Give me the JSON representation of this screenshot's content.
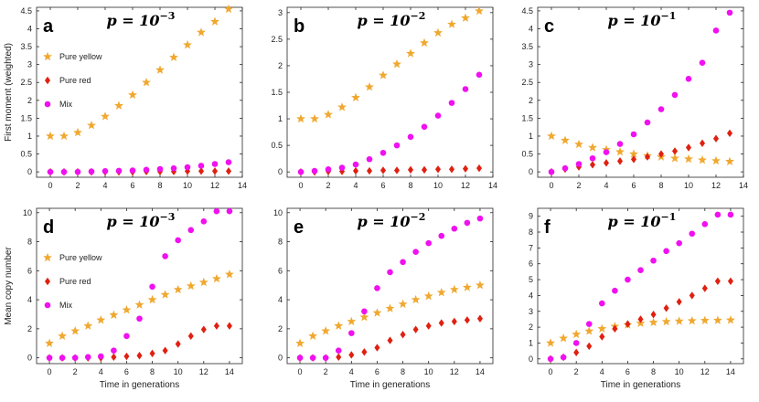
{
  "figure": {
    "colors": {
      "yellow": "#F0A830",
      "red": "#E02010",
      "mix": "#F010F0"
    },
    "legend": [
      "Pure yellow",
      "Pure red",
      "Mix"
    ],
    "xlabel": "Time in generations",
    "ylabel_top": "First moment (weighted)",
    "ylabel_bottom": "Mean copy number"
  },
  "chart_data": [
    {
      "type": "scatter",
      "panel": "a",
      "title": {
        "base": "p = 10",
        "exp": "−3"
      },
      "xlim": [
        -1,
        14
      ],
      "ylim": [
        -0.15,
        4.6
      ],
      "xticks": [
        0,
        2,
        4,
        6,
        8,
        10,
        12,
        14
      ],
      "yticks": [
        0,
        0.5,
        1,
        1.5,
        2,
        2.5,
        3,
        3.5,
        4,
        4.5
      ],
      "legend": true,
      "ylabel": "ylabel_top",
      "xlabel": false,
      "series": [
        {
          "name": "Pure yellow",
          "marker": "star",
          "x": [
            0,
            1,
            2,
            3,
            4,
            5,
            6,
            7,
            8,
            9,
            10,
            11,
            12,
            13
          ],
          "y": [
            1.0,
            1.0,
            1.1,
            1.3,
            1.55,
            1.85,
            2.15,
            2.5,
            2.85,
            3.2,
            3.55,
            3.9,
            4.2,
            4.55
          ]
        },
        {
          "name": "Pure red",
          "marker": "diamond",
          "x": [
            0,
            1,
            2,
            3,
            4,
            5,
            6,
            7,
            8,
            9,
            10,
            11,
            12,
            13
          ],
          "y": [
            0.0,
            0.0,
            0.0,
            0.0,
            0.0,
            0.0,
            0.0,
            0.01,
            0.01,
            0.01,
            0.02,
            0.02,
            0.02,
            0.02
          ]
        },
        {
          "name": "Mix",
          "marker": "circle",
          "x": [
            0,
            1,
            2,
            3,
            4,
            5,
            6,
            7,
            8,
            9,
            10,
            11,
            12,
            13
          ],
          "y": [
            0.0,
            0.0,
            0.0,
            0.01,
            0.02,
            0.03,
            0.04,
            0.06,
            0.08,
            0.1,
            0.13,
            0.17,
            0.22,
            0.27
          ]
        }
      ]
    },
    {
      "type": "scatter",
      "panel": "b",
      "title": {
        "base": "p = 10",
        "exp": "−2"
      },
      "xlim": [
        -1,
        14
      ],
      "ylim": [
        -0.1,
        3.1
      ],
      "xticks": [
        0,
        2,
        4,
        6,
        8,
        10,
        12,
        14
      ],
      "yticks": [
        0,
        0.5,
        1,
        1.5,
        2,
        2.5,
        3
      ],
      "legend": false,
      "ylabel": null,
      "xlabel": false,
      "series": [
        {
          "name": "Pure yellow",
          "marker": "star",
          "x": [
            0,
            1,
            2,
            3,
            4,
            5,
            6,
            7,
            8,
            9,
            10,
            11,
            12,
            13
          ],
          "y": [
            1.0,
            1.0,
            1.08,
            1.22,
            1.4,
            1.6,
            1.82,
            2.03,
            2.23,
            2.43,
            2.62,
            2.78,
            2.9,
            3.03
          ]
        },
        {
          "name": "Pure red",
          "marker": "diamond",
          "x": [
            0,
            1,
            2,
            3,
            4,
            5,
            6,
            7,
            8,
            9,
            10,
            11,
            12,
            13
          ],
          "y": [
            0.0,
            0.0,
            0.01,
            0.01,
            0.02,
            0.02,
            0.03,
            0.03,
            0.04,
            0.04,
            0.05,
            0.05,
            0.06,
            0.07
          ]
        },
        {
          "name": "Mix",
          "marker": "circle",
          "x": [
            0,
            1,
            2,
            3,
            4,
            5,
            6,
            7,
            8,
            9,
            10,
            11,
            12,
            13
          ],
          "y": [
            0.0,
            0.02,
            0.05,
            0.08,
            0.14,
            0.24,
            0.36,
            0.5,
            0.66,
            0.85,
            1.06,
            1.3,
            1.56,
            1.83
          ]
        }
      ]
    },
    {
      "type": "scatter",
      "panel": "c",
      "title": {
        "base": "p = 10",
        "exp": "−1"
      },
      "xlim": [
        -1,
        14
      ],
      "ylim": [
        -0.15,
        4.6
      ],
      "xticks": [
        0,
        2,
        4,
        6,
        8,
        10,
        12,
        14
      ],
      "yticks": [
        0,
        0.5,
        1,
        1.5,
        2,
        2.5,
        3,
        3.5,
        4,
        4.5
      ],
      "legend": false,
      "ylabel": null,
      "xlabel": false,
      "series": [
        {
          "name": "Pure yellow",
          "marker": "star",
          "x": [
            0,
            1,
            2,
            3,
            4,
            5,
            6,
            7,
            8,
            9,
            10,
            11,
            12,
            13
          ],
          "y": [
            1.0,
            0.88,
            0.77,
            0.68,
            0.62,
            0.56,
            0.5,
            0.45,
            0.42,
            0.38,
            0.36,
            0.33,
            0.31,
            0.29
          ]
        },
        {
          "name": "Pure red",
          "marker": "diamond",
          "x": [
            0,
            1,
            2,
            3,
            4,
            5,
            6,
            7,
            8,
            9,
            10,
            11,
            12,
            13
          ],
          "y": [
            0.0,
            0.08,
            0.14,
            0.2,
            0.25,
            0.3,
            0.35,
            0.42,
            0.5,
            0.58,
            0.68,
            0.8,
            0.93,
            1.08
          ]
        },
        {
          "name": "Mix",
          "marker": "circle",
          "x": [
            0,
            1,
            2,
            3,
            4,
            5,
            6,
            7,
            8,
            9,
            10,
            11,
            12,
            13
          ],
          "y": [
            0.0,
            0.1,
            0.22,
            0.38,
            0.55,
            0.78,
            1.05,
            1.38,
            1.75,
            2.15,
            2.6,
            3.05,
            3.95,
            4.45
          ]
        }
      ]
    },
    {
      "type": "scatter",
      "panel": "d",
      "title": {
        "base": "p = 10",
        "exp": "−3"
      },
      "xlim": [
        -1,
        15
      ],
      "ylim": [
        -0.4,
        10.3
      ],
      "xticks": [
        0,
        2,
        4,
        6,
        8,
        10,
        12,
        14
      ],
      "yticks": [
        0,
        2,
        4,
        6,
        8,
        10
      ],
      "legend": true,
      "ylabel": "ylabel_bottom",
      "xlabel": true,
      "series": [
        {
          "name": "Pure yellow",
          "marker": "star",
          "x": [
            0,
            1,
            2,
            3,
            4,
            5,
            6,
            7,
            8,
            9,
            10,
            11,
            12,
            13,
            14
          ],
          "y": [
            1.0,
            1.5,
            1.85,
            2.2,
            2.6,
            2.95,
            3.3,
            3.65,
            4.0,
            4.35,
            4.7,
            4.95,
            5.2,
            5.45,
            5.75
          ]
        },
        {
          "name": "Pure red",
          "marker": "diamond",
          "x": [
            0,
            1,
            2,
            3,
            4,
            5,
            6,
            7,
            8,
            9,
            10,
            11,
            12,
            13,
            14
          ],
          "y": [
            0.0,
            0.0,
            0.0,
            0.0,
            0.0,
            0.05,
            0.1,
            0.15,
            0.3,
            0.5,
            0.95,
            1.5,
            1.95,
            2.2,
            2.2
          ]
        },
        {
          "name": "Mix",
          "marker": "circle",
          "x": [
            0,
            1,
            2,
            3,
            4,
            5,
            6,
            7,
            8,
            9,
            10,
            11,
            12,
            13,
            14
          ],
          "y": [
            0.0,
            0.0,
            0.0,
            0.05,
            0.1,
            0.5,
            1.5,
            2.7,
            4.9,
            7.0,
            8.1,
            8.8,
            9.4,
            10.1,
            10.1
          ]
        }
      ]
    },
    {
      "type": "scatter",
      "panel": "e",
      "title": {
        "base": "p = 10",
        "exp": "−2"
      },
      "xlim": [
        -1,
        15
      ],
      "ylim": [
        -0.4,
        10.3
      ],
      "xticks": [
        0,
        2,
        4,
        6,
        8,
        10,
        12,
        14
      ],
      "yticks": [
        0,
        2,
        4,
        6,
        8,
        10
      ],
      "legend": false,
      "ylabel": null,
      "xlabel": true,
      "series": [
        {
          "name": "Pure yellow",
          "marker": "star",
          "x": [
            0,
            1,
            2,
            3,
            4,
            5,
            6,
            7,
            8,
            9,
            10,
            11,
            12,
            13,
            14
          ],
          "y": [
            1.0,
            1.5,
            1.85,
            2.2,
            2.5,
            2.8,
            3.1,
            3.4,
            3.7,
            4.0,
            4.25,
            4.5,
            4.7,
            4.85,
            5.0
          ]
        },
        {
          "name": "Pure red",
          "marker": "diamond",
          "x": [
            0,
            1,
            2,
            3,
            4,
            5,
            6,
            7,
            8,
            9,
            10,
            11,
            12,
            13,
            14
          ],
          "y": [
            0.0,
            0.0,
            0.0,
            0.05,
            0.2,
            0.4,
            0.7,
            1.2,
            1.6,
            1.95,
            2.2,
            2.4,
            2.5,
            2.6,
            2.7
          ]
        },
        {
          "name": "Mix",
          "marker": "circle",
          "x": [
            0,
            1,
            2,
            3,
            4,
            5,
            6,
            7,
            8,
            9,
            10,
            11,
            12,
            13,
            14
          ],
          "y": [
            0.0,
            0.0,
            0.0,
            0.5,
            1.7,
            3.2,
            4.8,
            5.9,
            6.6,
            7.3,
            7.9,
            8.4,
            8.9,
            9.3,
            9.6
          ]
        }
      ]
    },
    {
      "type": "scatter",
      "panel": "f",
      "title": {
        "base": "p = 10",
        "exp": "−1"
      },
      "xlim": [
        -1,
        15
      ],
      "ylim": [
        -0.3,
        9.5
      ],
      "xticks": [
        0,
        2,
        4,
        6,
        8,
        10,
        12,
        14
      ],
      "yticks": [
        0,
        1,
        2,
        3,
        4,
        5,
        6,
        7,
        8,
        9
      ],
      "legend": false,
      "ylabel": null,
      "xlabel": true,
      "series": [
        {
          "name": "Pure yellow",
          "marker": "star",
          "x": [
            0,
            1,
            2,
            3,
            4,
            5,
            6,
            7,
            8,
            9,
            10,
            11,
            12,
            13,
            14
          ],
          "y": [
            1.0,
            1.3,
            1.55,
            1.75,
            1.9,
            2.05,
            2.15,
            2.25,
            2.3,
            2.35,
            2.38,
            2.4,
            2.42,
            2.43,
            2.45
          ]
        },
        {
          "name": "Pure red",
          "marker": "diamond",
          "x": [
            0,
            1,
            2,
            3,
            4,
            5,
            6,
            7,
            8,
            9,
            10,
            11,
            12,
            13,
            14
          ],
          "y": [
            0.0,
            0.1,
            0.4,
            0.8,
            1.4,
            1.9,
            2.2,
            2.5,
            2.8,
            3.2,
            3.6,
            4.0,
            4.45,
            4.9,
            4.9
          ]
        },
        {
          "name": "Mix",
          "marker": "circle",
          "x": [
            0,
            1,
            2,
            3,
            4,
            5,
            6,
            7,
            8,
            9,
            10,
            11,
            12,
            13,
            14
          ],
          "y": [
            0.0,
            0.1,
            1.0,
            2.2,
            3.5,
            4.3,
            5.0,
            5.6,
            6.2,
            6.8,
            7.3,
            7.9,
            8.5,
            9.1,
            9.1
          ]
        }
      ]
    }
  ]
}
